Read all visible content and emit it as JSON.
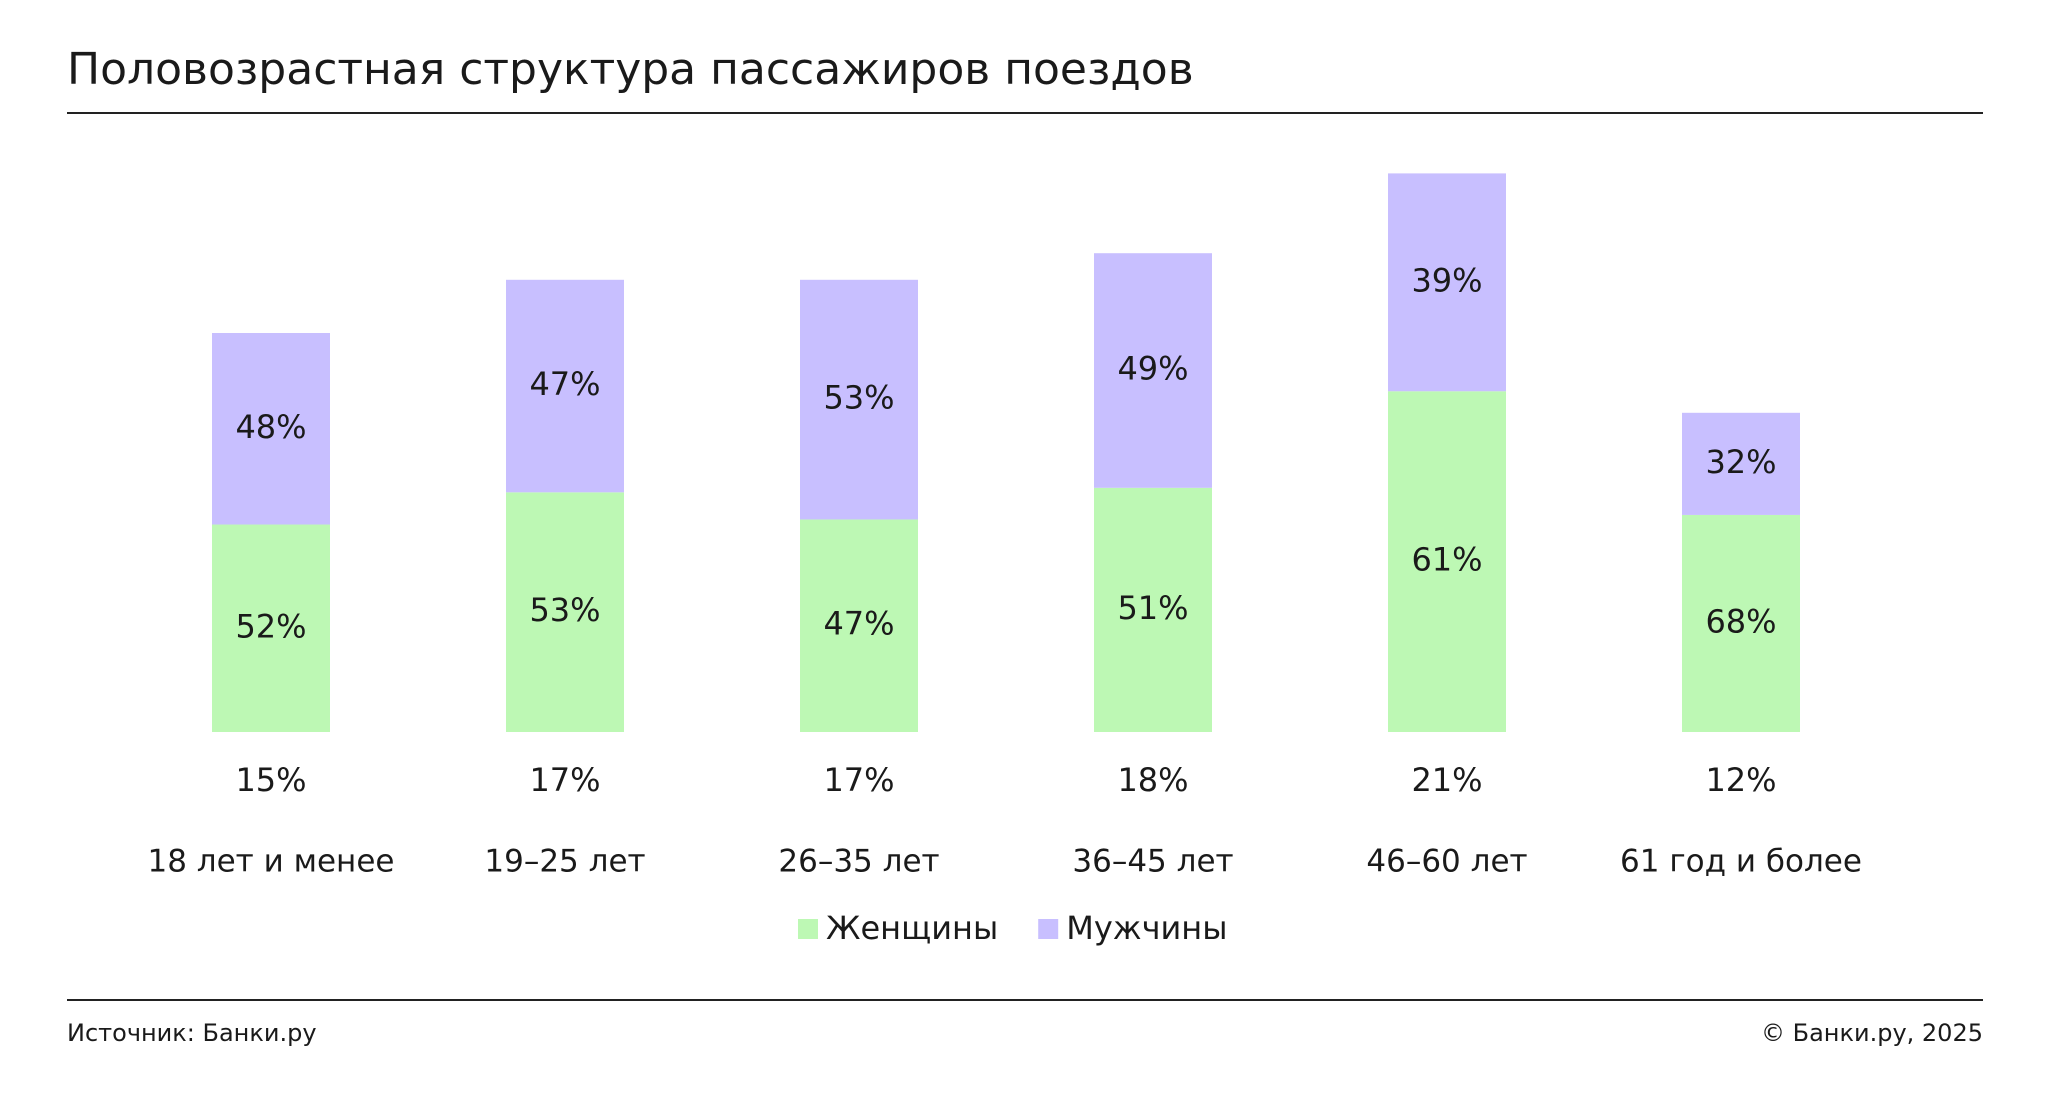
{
  "chart_data": {
    "type": "stacked-bar",
    "title": "Половозрастная структура пассажиров поездов",
    "categories": [
      "18 лет и менее",
      "19–25 лет",
      "26–35 лет",
      "36–45 лет",
      "46–60 лет",
      "61 год и более"
    ],
    "totals": {
      "values": [
        15,
        17,
        17,
        18,
        21,
        12
      ],
      "value_labels": [
        "15%",
        "17%",
        "17%",
        "18%",
        "21%",
        "12%"
      ]
    },
    "series": [
      {
        "name": "Женщины",
        "color": "#bdf8b4",
        "values": [
          52,
          53,
          47,
          51,
          61,
          68
        ],
        "value_labels": [
          "52%",
          "53%",
          "47%",
          "51%",
          "61%",
          "68%"
        ]
      },
      {
        "name": "Мужчины",
        "color": "#c8bfff",
        "values": [
          48,
          47,
          53,
          49,
          39,
          32
        ],
        "value_labels": [
          "48%",
          "47%",
          "53%",
          "49%",
          "39%",
          "32%"
        ]
      }
    ],
    "source": "Источник: Банки.ру",
    "copyright": "© Банки.ру, 2025"
  }
}
